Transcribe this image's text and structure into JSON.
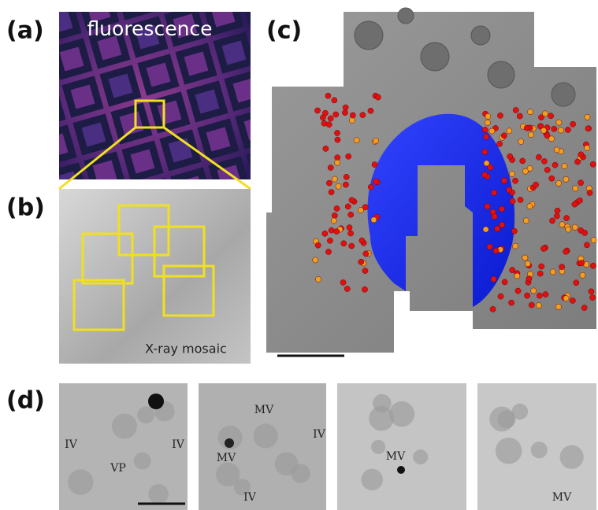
{
  "panels": [
    {
      "label": "(a)",
      "caption": "fluorescence"
    },
    {
      "label": "(b)",
      "caption": "X-ray mosaic"
    },
    {
      "label": "(c)"
    },
    {
      "label": "(d)",
      "tiles": [
        {
          "labels": [
            "IV",
            "VP",
            "IV"
          ]
        },
        {
          "labels": [
            "MV",
            "IV",
            "MV",
            "IV"
          ]
        },
        {
          "labels": [
            "MV"
          ]
        },
        {
          "labels": [
            "MV"
          ]
        }
      ]
    }
  ]
}
